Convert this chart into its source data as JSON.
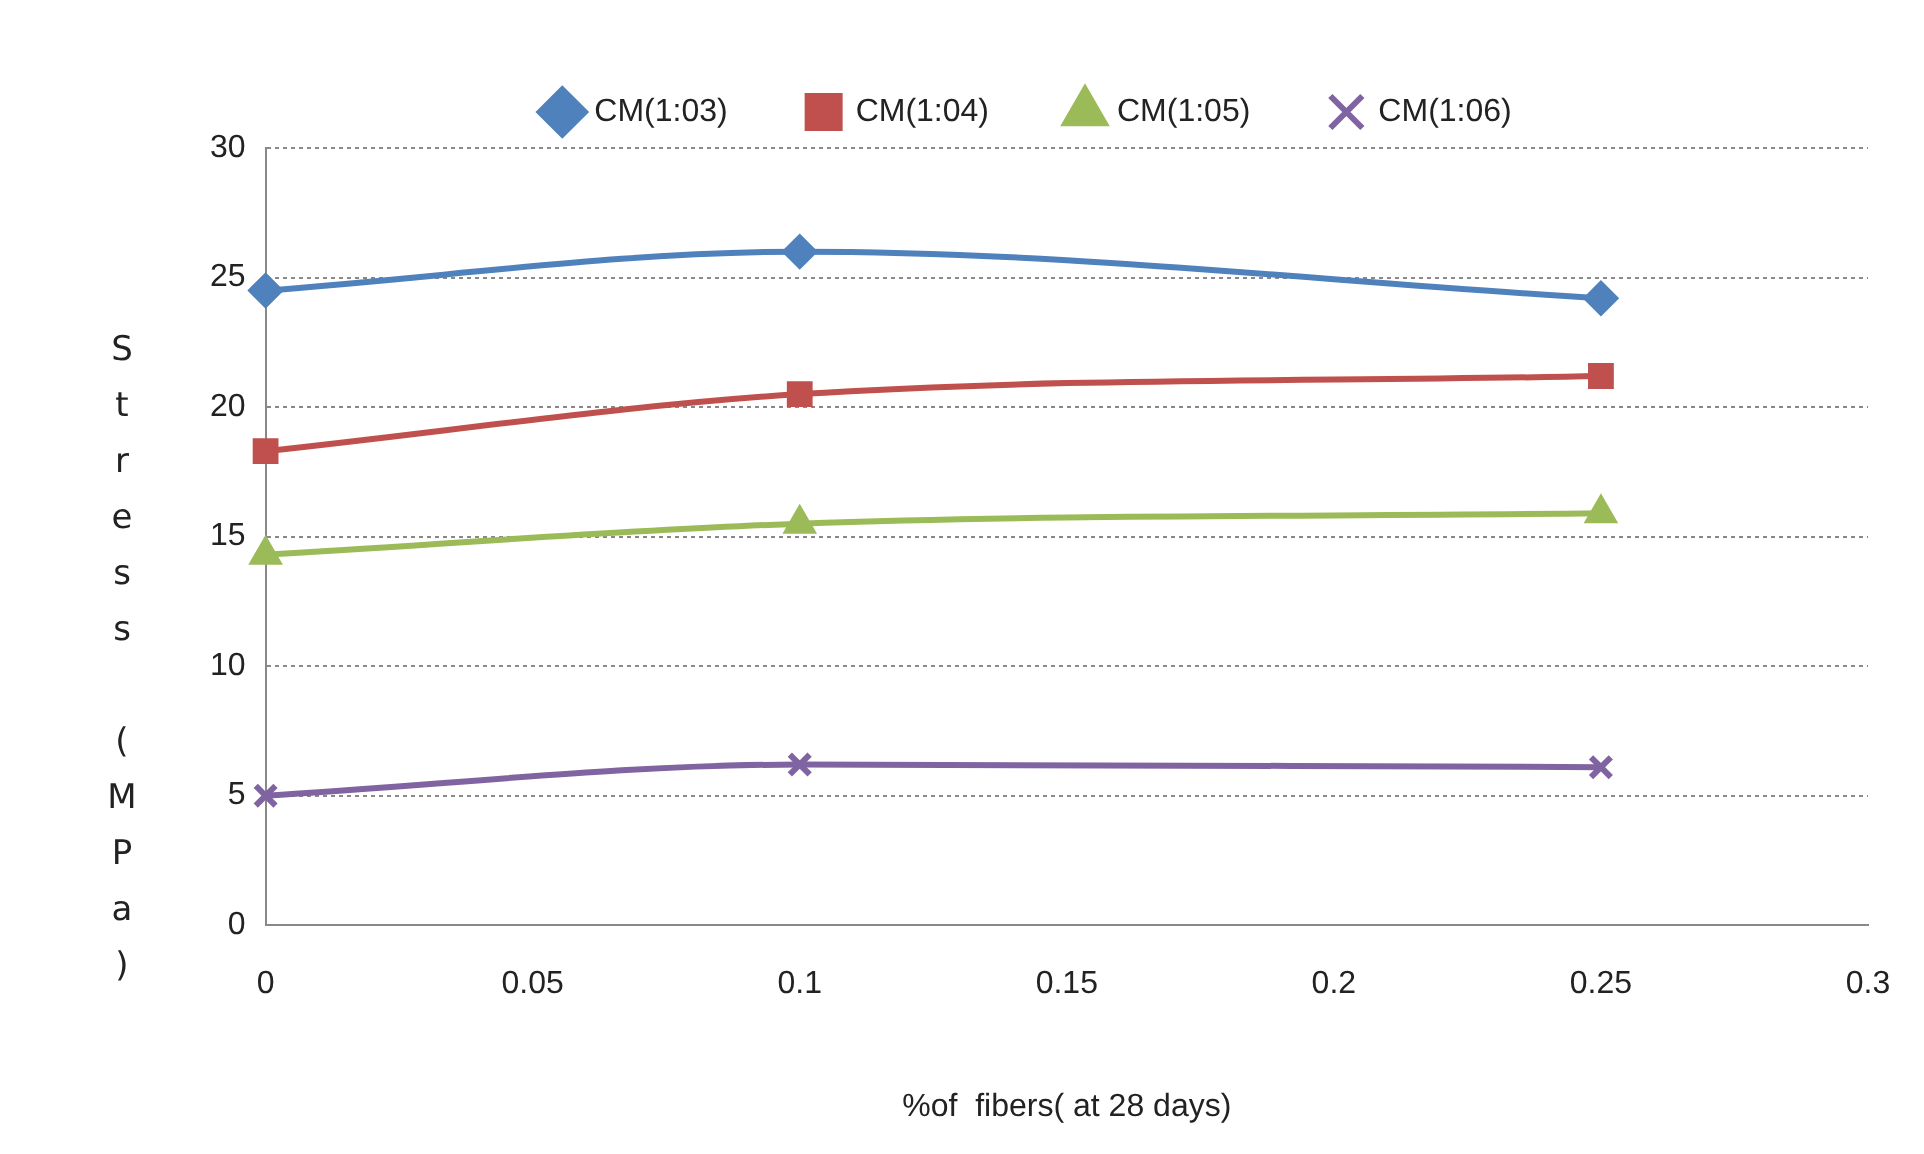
{
  "chart_data": {
    "type": "line",
    "xlabel": "%of  fibers( at 28 days)",
    "ylabel": "Stress (MPa)",
    "x": [
      0,
      0.1,
      0.25
    ],
    "xlim": [
      0,
      0.3
    ],
    "xticks": [
      0,
      0.05,
      0.1,
      0.15,
      0.2,
      0.25,
      0.3
    ],
    "ylim": [
      0,
      30
    ],
    "yticks": [
      0,
      5,
      10,
      15,
      20,
      25,
      30
    ],
    "grid": "y",
    "legend": "top",
    "series": [
      {
        "name": "CM(1:03)",
        "color": "#4f81bd",
        "marker": "diamond",
        "values": [
          24.5,
          26.0,
          24.2
        ]
      },
      {
        "name": "CM(1:04)",
        "color": "#c0504d",
        "marker": "square",
        "values": [
          18.3,
          20.5,
          21.2
        ]
      },
      {
        "name": "CM(1:05)",
        "color": "#9bbb59",
        "marker": "triangle",
        "values": [
          14.3,
          15.5,
          15.9
        ]
      },
      {
        "name": "CM(1:06)",
        "color": "#8064a2",
        "marker": "cross",
        "values": [
          5.0,
          6.2,
          6.1
        ]
      }
    ]
  }
}
